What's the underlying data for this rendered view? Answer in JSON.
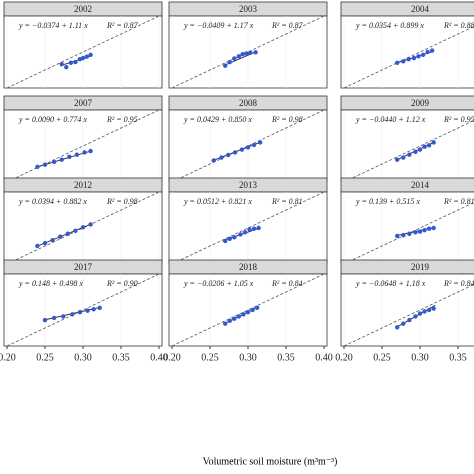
{
  "chart_data": {
    "type": "scatter",
    "x_label": "Volumetric soil moisture (m³m⁻³)",
    "xlim": [
      0.2,
      0.4
    ],
    "ylim": [
      0.2,
      0.4
    ],
    "xticks": [
      {
        "value": 0.2,
        "label": "0.20"
      },
      0.25,
      {
        "value": 0.3,
        "label": "0.30"
      },
      0.35,
      {
        "value": 0.4,
        "label": "0.40"
      }
    ],
    "point_color": "#3457d5",
    "panels": [
      {
        "title": "2002",
        "equation": "y = −0.0374 + 1.11 x",
        "r2": "R² = 0.87",
        "x": [
          0.272,
          0.278,
          0.284,
          0.29,
          0.296,
          0.3,
          0.305,
          0.31
        ],
        "y": [
          0.266,
          0.258,
          0.27,
          0.272,
          0.28,
          0.283,
          0.287,
          0.292
        ],
        "fit_x": [
          0.27,
          0.312
        ],
        "fit_y": [
          0.262,
          0.29
        ]
      },
      {
        "title": "2003",
        "equation": "y = −0.0409 + 1.17 x",
        "r2": "R² = 0.87",
        "x": [
          0.27,
          0.276,
          0.282,
          0.288,
          0.293,
          0.298,
          0.303,
          0.31
        ],
        "y": [
          0.262,
          0.272,
          0.282,
          0.288,
          0.294,
          0.296,
          0.298,
          0.299
        ],
        "fit_x": [
          0.27,
          0.31
        ],
        "fit_y": [
          0.264,
          0.3
        ]
      },
      {
        "title": "2004",
        "equation": "y = 0.0354 + 0.899 x",
        "r2": "R² = 0.88",
        "x": [
          0.27,
          0.278,
          0.285,
          0.292,
          0.298,
          0.304,
          0.31,
          0.316
        ],
        "y": [
          0.27,
          0.274,
          0.28,
          0.283,
          0.288,
          0.292,
          0.3,
          0.304
        ],
        "fit_x": [
          0.27,
          0.318
        ],
        "fit_y": [
          0.27,
          0.302
        ]
      },
      {
        "title": "2007",
        "equation": "y = 0.0090 + 0.774 x",
        "r2": "R² = 0.95",
        "x": [
          0.24,
          0.25,
          0.262,
          0.272,
          0.282,
          0.292,
          0.302,
          0.31
        ],
        "y": [
          0.242,
          0.248,
          0.256,
          0.262,
          0.27,
          0.276,
          0.282,
          0.286
        ],
        "fit_x": [
          0.238,
          0.312
        ],
        "fit_y": [
          0.241,
          0.287
        ]
      },
      {
        "title": "2008",
        "equation": "y = 0.0429 + 0.850 x",
        "r2": "R² = 0.98",
        "x": [
          0.255,
          0.265,
          0.274,
          0.283,
          0.292,
          0.3,
          0.308,
          0.316
        ],
        "y": [
          0.26,
          0.268,
          0.275,
          0.282,
          0.29,
          0.296,
          0.303,
          0.31
        ],
        "fit_x": [
          0.252,
          0.318
        ],
        "fit_y": [
          0.258,
          0.312
        ]
      },
      {
        "title": "2009",
        "equation": "y = −0.0440 + 1.12 x",
        "r2": "R² = 0.95",
        "x": [
          0.27,
          0.278,
          0.286,
          0.294,
          0.3,
          0.306,
          0.312,
          0.318
        ],
        "y": [
          0.262,
          0.268,
          0.276,
          0.284,
          0.29,
          0.298,
          0.302,
          0.31
        ],
        "fit_x": [
          0.268,
          0.32
        ],
        "fit_y": [
          0.26,
          0.312
        ]
      },
      {
        "title": "2012",
        "equation": "y = 0.0394 + 0.882 x",
        "r2": "R² = 0.98",
        "x": [
          0.24,
          0.25,
          0.26,
          0.27,
          0.28,
          0.29,
          0.3,
          0.31
        ],
        "y": [
          0.25,
          0.258,
          0.266,
          0.276,
          0.284,
          0.292,
          0.302,
          0.31
        ],
        "fit_x": [
          0.238,
          0.312
        ],
        "fit_y": [
          0.248,
          0.312
        ]
      },
      {
        "title": "2013",
        "equation": "y = 0.0512 + 0.821 x",
        "r2": "R² = 0.81",
        "x": [
          0.27,
          0.276,
          0.282,
          0.29,
          0.296,
          0.302,
          0.308,
          0.314
        ],
        "y": [
          0.264,
          0.27,
          0.274,
          0.282,
          0.288,
          0.296,
          0.298,
          0.3
        ],
        "fit_x": [
          0.268,
          0.316
        ],
        "fit_y": [
          0.266,
          0.3
        ]
      },
      {
        "title": "2014",
        "equation": "y = 0.139 + 0.515 x",
        "r2": "R² = 0.81",
        "x": [
          0.27,
          0.278,
          0.286,
          0.294,
          0.3,
          0.306,
          0.312,
          0.318
        ],
        "y": [
          0.278,
          0.28,
          0.284,
          0.288,
          0.29,
          0.294,
          0.298,
          0.3
        ],
        "fit_x": [
          0.268,
          0.32
        ],
        "fit_y": [
          0.278,
          0.302
        ]
      },
      {
        "title": "2017",
        "equation": "y = 0.148 + 0.498 x",
        "r2": "R² = 0.90",
        "x": [
          0.25,
          0.262,
          0.274,
          0.286,
          0.296,
          0.306,
          0.314,
          0.322
        ],
        "y": [
          0.272,
          0.278,
          0.282,
          0.288,
          0.294,
          0.298,
          0.302,
          0.306
        ],
        "fit_x": [
          0.248,
          0.324
        ],
        "fit_y": [
          0.272,
          0.308
        ]
      },
      {
        "title": "2018",
        "equation": "y = −0.0206 + 1.05 x",
        "r2": "R² = 0.84",
        "x": [
          0.27,
          0.276,
          0.282,
          0.288,
          0.294,
          0.3,
          0.306,
          0.312
        ],
        "y": [
          0.262,
          0.27,
          0.276,
          0.282,
          0.288,
          0.294,
          0.3,
          0.306
        ],
        "fit_x": [
          0.268,
          0.314
        ],
        "fit_y": [
          0.261,
          0.309
        ]
      },
      {
        "title": "2019",
        "equation": "y = −0.0648 + 1.18 x",
        "r2": "R² = 0.84",
        "x": [
          0.27,
          0.278,
          0.286,
          0.294,
          0.3,
          0.306,
          0.312,
          0.318
        ],
        "y": [
          0.252,
          0.262,
          0.272,
          0.282,
          0.29,
          0.296,
          0.3,
          0.304
        ],
        "fit_x": [
          0.268,
          0.32
        ],
        "fit_y": [
          0.251,
          0.313
        ]
      }
    ]
  }
}
